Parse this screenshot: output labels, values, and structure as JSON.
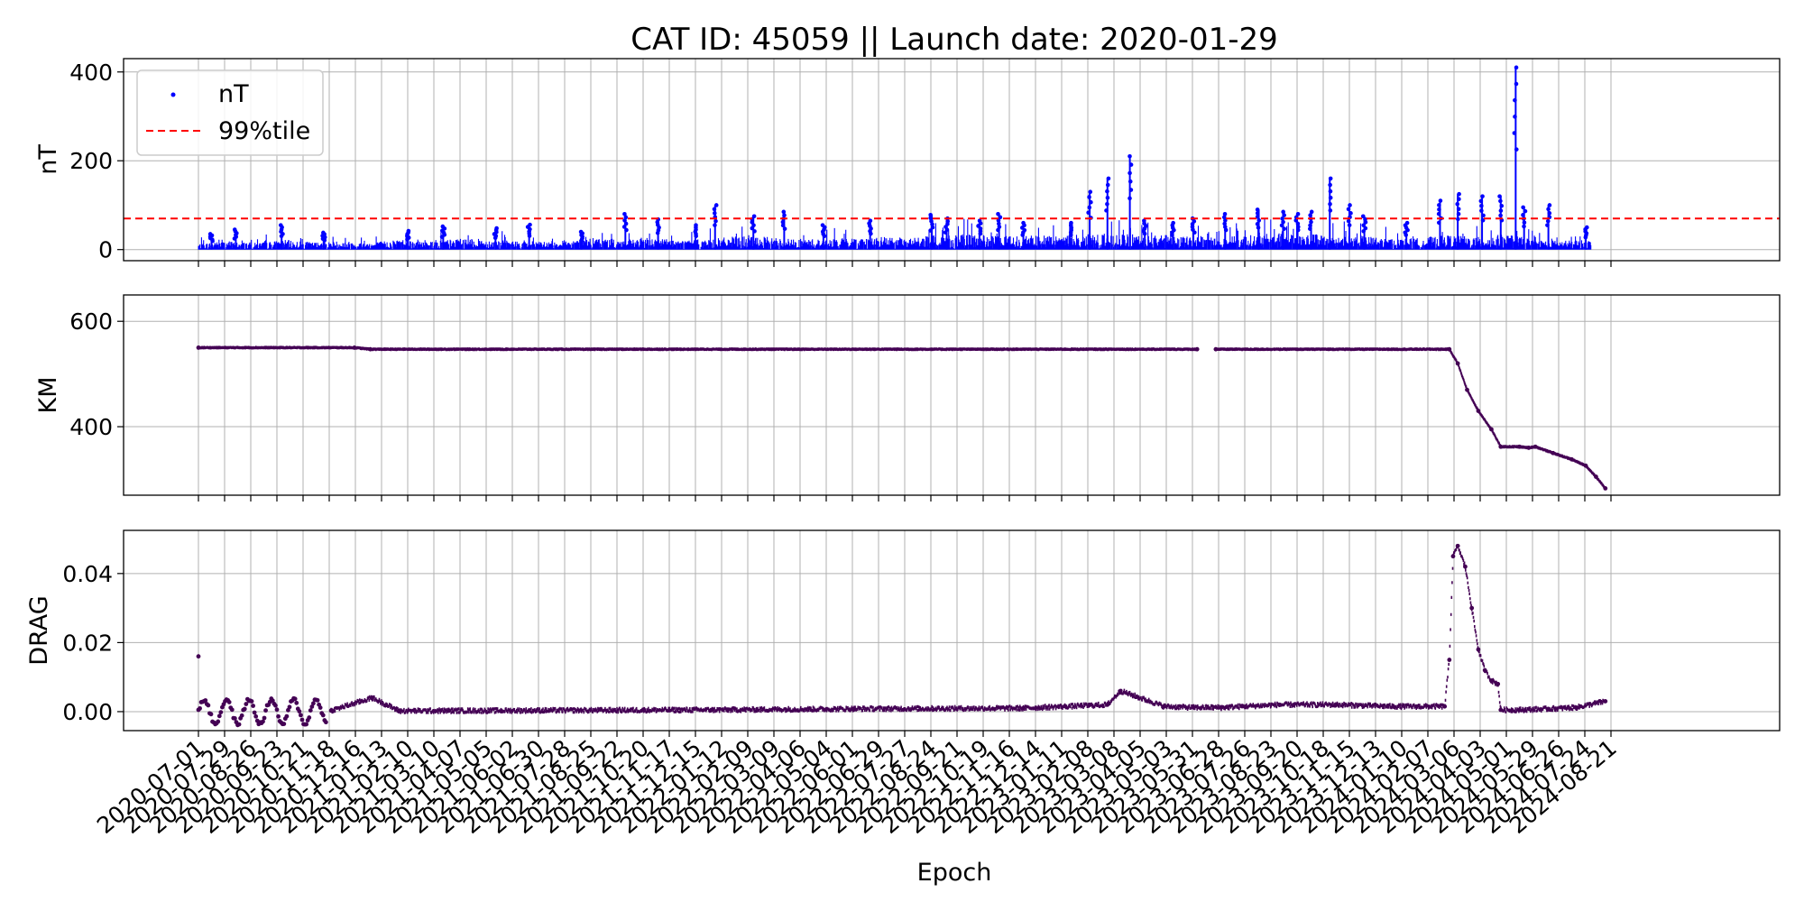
{
  "figure": {
    "title": "CAT ID: 45059 || Launch date: 2020-01-29",
    "xlabel": "Epoch"
  },
  "chart_data": [
    {
      "type": "scatter",
      "panel": "nT",
      "ylabel": "nT",
      "ylim": [
        -25,
        430
      ],
      "yticks": [
        0,
        200,
        400
      ],
      "ytick_labels": [
        "0",
        "200",
        "400"
      ],
      "grid": true,
      "legend": {
        "placement": "top-left",
        "entries": [
          "nT",
          "99%tile"
        ]
      },
      "series": [
        {
          "name": "nT",
          "color": "#0000ff",
          "baseline_points": [
            [
              "2020-07-01",
              12
            ],
            [
              "2020-08-01",
              18
            ],
            [
              "2020-09-01",
              14
            ],
            [
              "2020-10-01",
              20
            ],
            [
              "2020-11-01",
              15
            ],
            [
              "2020-12-01",
              18
            ],
            [
              "2021-01-01",
              14
            ],
            [
              "2021-02-01",
              22
            ],
            [
              "2021-03-01",
              20
            ],
            [
              "2021-04-01",
              21
            ],
            [
              "2021-05-01",
              22
            ],
            [
              "2021-06-01",
              18
            ],
            [
              "2021-07-01",
              16
            ],
            [
              "2021-08-01",
              20
            ],
            [
              "2021-09-01",
              24
            ],
            [
              "2021-10-01",
              20
            ],
            [
              "2021-11-01",
              24
            ],
            [
              "2021-12-01",
              20
            ],
            [
              "2022-01-01",
              22
            ],
            [
              "2022-02-01",
              28
            ],
            [
              "2022-03-01",
              26
            ],
            [
              "2022-04-01",
              22
            ],
            [
              "2022-05-01",
              22
            ],
            [
              "2022-06-01",
              24
            ],
            [
              "2022-07-01",
              26
            ],
            [
              "2022-08-01",
              24
            ],
            [
              "2022-09-01",
              30
            ],
            [
              "2022-10-01",
              32
            ],
            [
              "2022-11-01",
              28
            ],
            [
              "2022-12-01",
              30
            ],
            [
              "2023-01-01",
              28
            ],
            [
              "2023-02-01",
              32
            ],
            [
              "2023-03-01",
              30
            ],
            [
              "2023-04-01",
              32
            ],
            [
              "2023-05-01",
              30
            ],
            [
              "2023-06-01",
              28
            ],
            [
              "2023-07-01",
              26
            ],
            [
              "2023-08-01",
              30
            ],
            [
              "2023-09-01",
              34
            ],
            [
              "2023-10-01",
              32
            ],
            [
              "2023-11-01",
              30
            ],
            [
              "2023-12-01",
              28
            ],
            [
              "2024-01-01",
              22
            ],
            [
              "2024-02-01",
              24
            ],
            [
              "2024-03-01",
              30
            ],
            [
              "2024-04-01",
              26
            ],
            [
              "2024-05-01",
              32
            ],
            [
              "2024-06-01",
              20
            ],
            [
              "2024-07-01",
              18
            ],
            [
              "2024-07-31",
              20
            ]
          ],
          "peaks": [
            [
              "2020-07-15",
              35
            ],
            [
              "2020-08-10",
              45
            ],
            [
              "2020-09-28",
              55
            ],
            [
              "2020-11-12",
              38
            ],
            [
              "2021-02-10",
              42
            ],
            [
              "2021-03-20",
              52
            ],
            [
              "2021-05-15",
              48
            ],
            [
              "2021-06-20",
              56
            ],
            [
              "2021-08-15",
              40
            ],
            [
              "2021-10-01",
              80
            ],
            [
              "2021-11-05",
              68
            ],
            [
              "2021-12-15",
              55
            ],
            [
              "2022-01-05",
              100
            ],
            [
              "2022-02-15",
              75
            ],
            [
              "2022-03-20",
              85
            ],
            [
              "2022-05-01",
              55
            ],
            [
              "2022-06-20",
              65
            ],
            [
              "2022-08-25",
              78
            ],
            [
              "2022-09-10",
              70
            ],
            [
              "2022-10-15",
              65
            ],
            [
              "2022-11-05",
              80
            ],
            [
              "2022-12-01",
              60
            ],
            [
              "2023-01-20",
              60
            ],
            [
              "2023-02-10",
              130
            ],
            [
              "2023-03-01",
              160
            ],
            [
              "2023-03-25",
              210
            ],
            [
              "2023-04-10",
              65
            ],
            [
              "2023-05-10",
              60
            ],
            [
              "2023-06-01",
              70
            ],
            [
              "2023-07-05",
              80
            ],
            [
              "2023-08-10",
              90
            ],
            [
              "2023-09-05",
              85
            ],
            [
              "2023-09-20",
              80
            ],
            [
              "2023-10-05",
              85
            ],
            [
              "2023-10-25",
              160
            ],
            [
              "2023-11-15",
              100
            ],
            [
              "2023-12-01",
              75
            ],
            [
              "2024-01-15",
              60
            ],
            [
              "2024-02-20",
              110
            ],
            [
              "2024-03-10",
              125
            ],
            [
              "2024-04-05",
              120
            ],
            [
              "2024-04-25",
              120
            ],
            [
              "2024-05-11",
              410
            ],
            [
              "2024-05-20",
              95
            ],
            [
              "2024-06-15",
              100
            ],
            [
              "2024-07-25",
              50
            ]
          ]
        },
        {
          "name": "99%tile",
          "kind": "hline",
          "value": 70,
          "color": "#ff0000",
          "style": "dashed"
        }
      ]
    },
    {
      "type": "scatter",
      "panel": "KM",
      "ylabel": "KM",
      "ylim": [
        270,
        650
      ],
      "yticks": [
        400,
        600
      ],
      "ytick_labels": [
        "400",
        "600"
      ],
      "grid": true,
      "series": [
        {
          "name": "",
          "color": "#440154",
          "points": [
            [
              "2020-07-01",
              550
            ],
            [
              "2020-12-15",
              550
            ],
            [
              "2021-01-01",
              547
            ],
            [
              "2023-06-05",
              547
            ],
            [
              "2023-06-15",
              null
            ],
            [
              "2023-06-25",
              547
            ],
            [
              "2024-03-01",
              547
            ],
            [
              "2024-03-10",
              520
            ],
            [
              "2024-03-20",
              470
            ],
            [
              "2024-04-01",
              430
            ],
            [
              "2024-04-15",
              395
            ],
            [
              "2024-04-25",
              362
            ],
            [
              "2024-05-15",
              362
            ],
            [
              "2024-05-25",
              360
            ],
            [
              "2024-06-01",
              362
            ],
            [
              "2024-06-20",
              350
            ],
            [
              "2024-07-10",
              338
            ],
            [
              "2024-07-25",
              326
            ],
            [
              "2024-08-05",
              305
            ],
            [
              "2024-08-15",
              283
            ]
          ]
        }
      ]
    },
    {
      "type": "scatter",
      "panel": "DRAG",
      "ylabel": "DRAG",
      "ylim": [
        -0.0055,
        0.0525
      ],
      "yticks": [
        0.0,
        0.02,
        0.04
      ],
      "ytick_labels": [
        "0.00",
        "0.02",
        "0.04"
      ],
      "grid": true,
      "series": [
        {
          "name": "",
          "color": "#440154",
          "oscillation": {
            "start": "2020-07-01",
            "end": "2020-11-15",
            "amplitude": 0.0035,
            "period_days": 24
          },
          "points": [
            [
              "2020-07-01",
              0.016
            ],
            [
              "2020-11-20",
              0.0003
            ],
            [
              "2021-01-03",
              0.004
            ],
            [
              "2021-02-01",
              0.0002
            ],
            [
              "2022-01-01",
              0.0005
            ],
            [
              "2022-06-01",
              0.0008
            ],
            [
              "2022-12-01",
              0.001
            ],
            [
              "2023-01-15",
              0.0015
            ],
            [
              "2023-03-01",
              0.002
            ],
            [
              "2023-03-15",
              0.006
            ],
            [
              "2023-05-01",
              0.0015
            ],
            [
              "2023-06-01",
              0.0012
            ],
            [
              "2023-07-01",
              0.0012
            ],
            [
              "2023-09-01",
              0.002
            ],
            [
              "2023-11-01",
              0.002
            ],
            [
              "2024-01-01",
              0.0015
            ],
            [
              "2024-02-25",
              0.0015
            ],
            [
              "2024-03-01",
              0.015
            ],
            [
              "2024-03-05",
              0.045
            ],
            [
              "2024-03-10",
              0.048
            ],
            [
              "2024-03-18",
              0.042
            ],
            [
              "2024-03-25",
              0.03
            ],
            [
              "2024-04-01",
              0.018
            ],
            [
              "2024-04-08",
              0.012
            ],
            [
              "2024-04-15",
              0.009
            ],
            [
              "2024-04-22",
              0.008
            ],
            [
              "2024-04-25",
              0.0005
            ],
            [
              "2024-05-15",
              0.0005
            ],
            [
              "2024-06-15",
              0.0008
            ],
            [
              "2024-07-15",
              0.0012
            ],
            [
              "2024-08-15",
              0.003
            ]
          ]
        }
      ]
    }
  ],
  "x_axis": {
    "label": "Epoch",
    "ticks": [
      "2020-07-01",
      "2020-07-29",
      "2020-08-26",
      "2020-09-23",
      "2020-10-21",
      "2020-11-18",
      "2020-12-16",
      "2021-01-13",
      "2021-02-10",
      "2021-03-10",
      "2021-04-07",
      "2021-05-05",
      "2021-06-02",
      "2021-06-30",
      "2021-07-28",
      "2021-08-25",
      "2021-09-22",
      "2021-10-20",
      "2021-11-17",
      "2021-12-15",
      "2022-01-12",
      "2022-02-09",
      "2022-03-09",
      "2022-04-06",
      "2022-05-04",
      "2022-06-01",
      "2022-06-29",
      "2022-07-27",
      "2022-08-24",
      "2022-09-21",
      "2022-10-19",
      "2022-11-16",
      "2022-12-14",
      "2023-01-11",
      "2023-02-08",
      "2023-03-08",
      "2023-04-05",
      "2023-05-03",
      "2023-05-31",
      "2023-06-28",
      "2023-07-26",
      "2023-08-23",
      "2023-09-20",
      "2023-10-18",
      "2023-11-15",
      "2023-12-13",
      "2024-01-10",
      "2024-02-07",
      "2024-03-06",
      "2024-04-03",
      "2024-05-01",
      "2024-05-29",
      "2024-06-26",
      "2024-07-24",
      "2024-08-21"
    ]
  },
  "colors": {
    "nT": "#0000ff",
    "percentile_line": "#ff0000",
    "orbit": "#440154",
    "grid": "#b0b0b0"
  }
}
